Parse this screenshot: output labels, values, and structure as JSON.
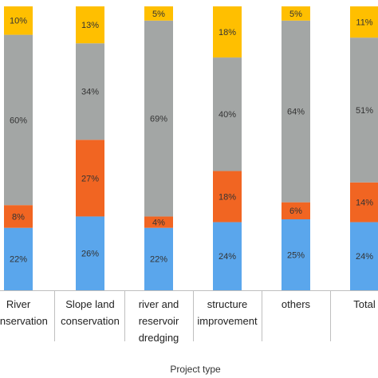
{
  "chart_data": {
    "type": "bar",
    "stacked": true,
    "xlabel": "Project type",
    "ylabel": "",
    "categories": [
      [
        "River",
        "conservation"
      ],
      [
        "Slope land",
        "conservation"
      ],
      [
        "river and",
        "reservoir",
        "dredging"
      ],
      [
        "structure",
        "improvement"
      ],
      [
        "others"
      ],
      [
        "Total"
      ]
    ],
    "series": [
      {
        "color": "#5aa6ec",
        "values": [
          22,
          26,
          22,
          24,
          25,
          24
        ],
        "labels": [
          "22%",
          "26%",
          "22%",
          "24%",
          "25%",
          "24%"
        ]
      },
      {
        "color": "#f16522",
        "values": [
          8,
          27,
          4,
          18,
          6,
          14
        ],
        "labels": [
          "8%",
          "27%",
          "4%",
          "18%",
          "6%",
          "14%"
        ]
      },
      {
        "color": "#a3a6a5",
        "values": [
          60,
          34,
          69,
          40,
          64,
          51
        ],
        "labels": [
          "60%",
          "34%",
          "69%",
          "40%",
          "64%",
          "51%"
        ]
      },
      {
        "color": "#ffbf00",
        "values": [
          10,
          13,
          5,
          18,
          5,
          11
        ],
        "labels": [
          "10%",
          "13%",
          "5%",
          "18%",
          "5%",
          "11%"
        ]
      }
    ],
    "ylim": [
      0,
      100
    ]
  }
}
